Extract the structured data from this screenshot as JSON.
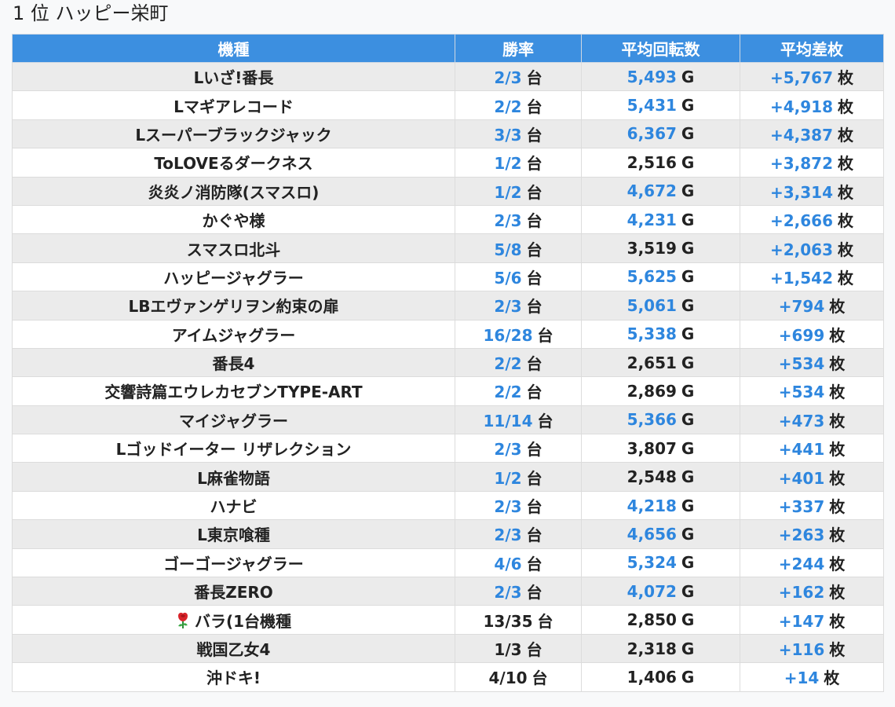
{
  "page": {
    "title": "1 位 ハッピー栄町"
  },
  "table": {
    "headers": [
      "機種",
      "勝率",
      "平均回転数",
      "平均差枚"
    ],
    "units": {
      "win": "台",
      "spins": "G",
      "diff": "枚"
    },
    "colors": {
      "header_bg": "#3c8fe0",
      "positive": "#2e86de",
      "neutral": "#222222"
    },
    "rows": [
      {
        "name": "Lいざ!番長",
        "win": "2/3",
        "win_highlight": true,
        "spins": "5,493",
        "spins_highlight": true,
        "diff": "+5,767"
      },
      {
        "name": "Lマギアレコード",
        "win": "2/2",
        "win_highlight": true,
        "spins": "5,431",
        "spins_highlight": true,
        "diff": "+4,918"
      },
      {
        "name": "Lスーパーブラックジャック",
        "win": "3/3",
        "win_highlight": true,
        "spins": "6,367",
        "spins_highlight": true,
        "diff": "+4,387"
      },
      {
        "name": "ToLOVEるダークネス",
        "win": "1/2",
        "win_highlight": true,
        "spins": "2,516",
        "spins_highlight": false,
        "diff": "+3,872"
      },
      {
        "name": "炎炎ノ消防隊(スマスロ)",
        "win": "1/2",
        "win_highlight": true,
        "spins": "4,672",
        "spins_highlight": true,
        "diff": "+3,314"
      },
      {
        "name": "かぐや様",
        "win": "2/3",
        "win_highlight": true,
        "spins": "4,231",
        "spins_highlight": true,
        "diff": "+2,666"
      },
      {
        "name": "スマスロ北斗",
        "win": "5/8",
        "win_highlight": true,
        "spins": "3,519",
        "spins_highlight": false,
        "diff": "+2,063"
      },
      {
        "name": "ハッピージャグラー",
        "win": "5/6",
        "win_highlight": true,
        "spins": "5,625",
        "spins_highlight": true,
        "diff": "+1,542"
      },
      {
        "name": "LBエヴァンゲリヲン約束の扉",
        "win": "2/3",
        "win_highlight": true,
        "spins": "5,061",
        "spins_highlight": true,
        "diff": "+794"
      },
      {
        "name": "アイムジャグラー",
        "win": "16/28",
        "win_highlight": true,
        "spins": "5,338",
        "spins_highlight": true,
        "diff": "+699"
      },
      {
        "name": "番長4",
        "win": "2/2",
        "win_highlight": true,
        "spins": "2,651",
        "spins_highlight": false,
        "diff": "+534"
      },
      {
        "name": "交響詩篇エウレカセブンTYPE-ART",
        "win": "2/2",
        "win_highlight": true,
        "spins": "2,869",
        "spins_highlight": false,
        "diff": "+534"
      },
      {
        "name": "マイジャグラー",
        "win": "11/14",
        "win_highlight": true,
        "spins": "5,366",
        "spins_highlight": true,
        "diff": "+473"
      },
      {
        "name": "Lゴッドイーター リザレクション",
        "win": "2/3",
        "win_highlight": true,
        "spins": "3,807",
        "spins_highlight": false,
        "diff": "+441"
      },
      {
        "name": "L麻雀物語",
        "win": "1/2",
        "win_highlight": true,
        "spins": "2,548",
        "spins_highlight": false,
        "diff": "+401"
      },
      {
        "name": "ハナビ",
        "win": "2/3",
        "win_highlight": true,
        "spins": "4,218",
        "spins_highlight": true,
        "diff": "+337"
      },
      {
        "name": "L東京喰種",
        "win": "2/3",
        "win_highlight": true,
        "spins": "4,656",
        "spins_highlight": true,
        "diff": "+263"
      },
      {
        "name": "ゴーゴージャグラー",
        "win": "4/6",
        "win_highlight": true,
        "spins": "5,324",
        "spins_highlight": true,
        "diff": "+244"
      },
      {
        "name": "番長ZERO",
        "win": "2/3",
        "win_highlight": true,
        "spins": "4,072",
        "spins_highlight": true,
        "diff": "+162"
      },
      {
        "name": "バラ(1台機種",
        "icon": "rose-icon",
        "win": "13/35",
        "win_highlight": false,
        "spins": "2,850",
        "spins_highlight": false,
        "diff": "+147"
      },
      {
        "name": "戦国乙女4",
        "win": "1/3",
        "win_highlight": false,
        "spins": "2,318",
        "spins_highlight": false,
        "diff": "+116"
      },
      {
        "name": "沖ドキ!",
        "win": "4/10",
        "win_highlight": false,
        "spins": "1,406",
        "spins_highlight": false,
        "diff": "+14"
      }
    ]
  }
}
